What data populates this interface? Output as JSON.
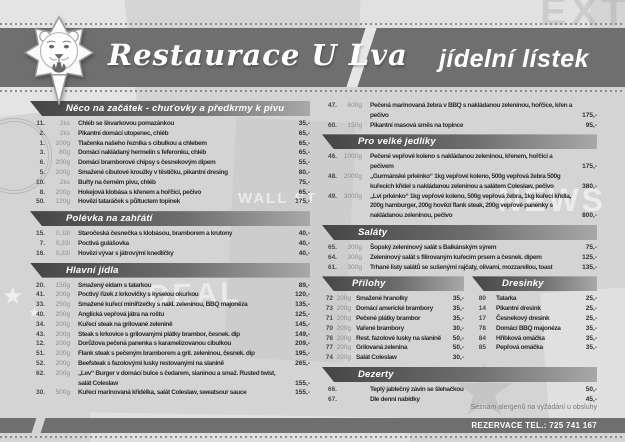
{
  "header": {
    "restaurant_name": "Restaurace U Lva",
    "menu_title": "jídelní lístek"
  },
  "sections": {
    "starters": {
      "title": "Něco na začátek - chuťovky a předkrmy k pivu",
      "items": [
        {
          "num": "11.",
          "qty": "2ks",
          "name": "Chléb se škvarkovou pomazánkou",
          "price": "35,-"
        },
        {
          "num": "2.",
          "qty": "2ks",
          "name": "Pikantní domácí utopenec, chléb",
          "price": "65,-"
        },
        {
          "num": "1.",
          "qty": "200g",
          "name": "Tlačenka našeho řezníka s cibulkou a chlebem",
          "price": "65,-"
        },
        {
          "num": "3.",
          "qty": "80g",
          "name": "Domácí nakládaný hermelín s feferonku, chléb",
          "price": "65,-"
        },
        {
          "num": "6.",
          "qty": "200g",
          "name": "Domácí bramborové chipsy s česnekovým dipem",
          "price": "55,-"
        },
        {
          "num": "5.",
          "qty": "200g",
          "name": "Smažené cibulové kroužky v těstíčku, pikantní dresing",
          "price": "80,-"
        },
        {
          "num": "10.",
          "qty": "2ks",
          "name": "Buřty na černém pivu, chléb",
          "price": "75,-"
        },
        {
          "num": "8.",
          "qty": "200g",
          "name": "Hokejová klobása s křenem a hořčicí, pečivo",
          "price": "65,-"
        },
        {
          "num": "50.",
          "qty": "120g",
          "name": "Hovězí tataráček s půltuctem topinek",
          "price": "175,-"
        }
      ]
    },
    "soups": {
      "title": "Polévka na zahřátí",
      "items": [
        {
          "num": "15.",
          "qty": "0,33l",
          "name": "Staročeská česnečka s klobásou, bramborem a krutony",
          "price": "40,-"
        },
        {
          "num": "7.",
          "qty": "0,33l",
          "name": "Poctivá gulášovka",
          "price": "40,-"
        },
        {
          "num": "16.",
          "qty": "0,33l",
          "name": "Hovězí vývar s játrovými knedlíčky",
          "price": "40,-"
        }
      ]
    },
    "mains": {
      "title": "Hlavní jídla",
      "items": [
        {
          "num": "20.",
          "qty": "150g",
          "name": "Smažený eidam s tatarkou",
          "price": "89,-"
        },
        {
          "num": "41.",
          "qty": "200g",
          "name": "Poctivý řízek z krkovičky s kyselou okurkou",
          "price": "120,-"
        },
        {
          "num": "33.",
          "qty": "250g",
          "name": "Smažené kuřecí miniřízečky s nakl. zeleninou, BBQ majonéza",
          "price": "135,-"
        },
        {
          "num": "40.",
          "qty": "200g",
          "name": "Anglická vepřová játra na roštu",
          "price": "125,-"
        },
        {
          "num": "34.",
          "qty": "200g",
          "name": "Kuřecí steak na grilované zelenině",
          "price": "145,-"
        },
        {
          "num": "43.",
          "qty": "200g",
          "name": "Steak s krkovice s grilovanými plátky brambor, česnek. dip",
          "price": "149,-"
        },
        {
          "num": "12.",
          "qty": "200g",
          "name": "Dorůžova pečená panenka s karamelizovanou cibulkou",
          "price": "209,-"
        },
        {
          "num": "51.",
          "qty": "200g",
          "name": "Flank steak s pečeným bramborem a gril. zeleninou, česnek. dip",
          "price": "195,-"
        },
        {
          "num": "52.",
          "qty": "200g",
          "name": "Beefsteak s fazolovými lusky restovanými na slanině",
          "price": "265,-"
        },
        {
          "num": "62.",
          "qty": "200g",
          "name": "„Lev“ Burger v domácí bulce s čedarem, slaninou a smaž. Rusted twist, salát Coleslaw",
          "price": "155,-"
        },
        {
          "num": "30.",
          "qty": "500g",
          "name": "Kuřecí marinovaná křidélka, salát Coleslaw, sweatsour sauce",
          "price": "155,-"
        }
      ]
    },
    "mains_cont": {
      "items": [
        {
          "num": "47.",
          "qty": "600g",
          "name": "Pečená marinovaná žebra v BBQ s nakládanou zeleninou, hořčice, křen a pečivo",
          "price": "175,-"
        },
        {
          "num": "60.",
          "qty": "150g",
          "name": "Pikantní masová směs na topince",
          "price": "95,-"
        }
      ]
    },
    "big_eaters": {
      "title": "Pro velké jedlíky",
      "items": [
        {
          "num": "46.",
          "qty": "1000g",
          "name": "Pečené vepřové koleno s nakládanou zeleninou, křenem, hořčicí a pečivem",
          "price": "175,-"
        },
        {
          "num": "48.",
          "qty": "2000g",
          "name": "„Gurmánské prkénko“ 1kg vepřové koleno, 500g vepřová žebra 500g kuřecích křídel s nakládanou zeleninou a salátem Coleslaw, pečivo",
          "price": "380,-"
        },
        {
          "num": "49.",
          "qty": "3000g",
          "name": "„Lví prkénko“ 1kg vepřové koleno, 500g vepřová žebra, 1kg kuřecí křídla, 200g hamburger, 200g hovězí flank steak, 200g vepřové panenky s nakládanou zeleninou, pečivo",
          "price": "800,-"
        }
      ]
    },
    "salads": {
      "title": "Saláty",
      "items": [
        {
          "num": "65.",
          "qty": "300g",
          "name": "Šopský zeleninový salát s Balkánským sýrem",
          "price": "75,-"
        },
        {
          "num": "64.",
          "qty": "300g",
          "name": "Zeleninový salát s filírovaným kuřecím prsem a česnek. dipem",
          "price": "125,-"
        },
        {
          "num": "61.",
          "qty": "300g",
          "name": "Trhané listy salátů se sušenými rajčaty, olivami, mozzarellou, toast",
          "price": "135,-"
        }
      ]
    },
    "sides": {
      "title": "Přílohy",
      "items": [
        {
          "num": "72",
          "qty": "200g",
          "name": "Smažené hranolky",
          "price": "35,-"
        },
        {
          "num": "73",
          "qty": "200g",
          "name": "Domácí americké brambory",
          "price": "35,-"
        },
        {
          "num": "71",
          "qty": "200g",
          "name": "Pečené plátky brambor",
          "price": "35,-"
        },
        {
          "num": "70",
          "qty": "200g",
          "name": "Vařené brambory",
          "price": "30,-"
        },
        {
          "num": "76",
          "qty": "200g",
          "name": "Rest. fazolové lusky na slanině",
          "price": "50,-"
        },
        {
          "num": "77",
          "qty": "200g",
          "name": "Grilovaná zelenina",
          "price": "50,-"
        },
        {
          "num": "74",
          "qty": "200g",
          "name": "Salát Coleslaw",
          "price": "30,-"
        }
      ]
    },
    "dressings": {
      "title": "Dresinky",
      "items": [
        {
          "num": "80",
          "name": "Tatarka",
          "price": "25,-"
        },
        {
          "num": "14",
          "name": "Pikantní dresink",
          "price": "25,-"
        },
        {
          "num": "17",
          "name": "Česnekový dresink",
          "price": "25,-"
        },
        {
          "num": "78",
          "name": "Domácí BBQ majonéza",
          "price": "35,-"
        },
        {
          "num": "84",
          "name": "Hříbková omáčka",
          "price": "35,-"
        },
        {
          "num": "85",
          "name": "Pepřová omáčka",
          "price": "35,-"
        }
      ]
    },
    "desserts": {
      "title": "Dezerty",
      "items": [
        {
          "num": "66.",
          "qty": "",
          "name": "Teplý jablečný závin se šlehačkou",
          "price": "50,-"
        },
        {
          "num": "67.",
          "qty": "",
          "name": "Dle denní nabídky",
          "price": "45,-"
        }
      ]
    }
  },
  "footer": {
    "allergen_note": "Seznam alergenů na vyžádání u obsluhy",
    "reservation": "REZERVACE TEL.: 725 741 167"
  },
  "decor": {
    "words": [
      "EXTR",
      "NEWS",
      "WALL ST",
      "DEAL"
    ],
    "star": "★"
  }
}
